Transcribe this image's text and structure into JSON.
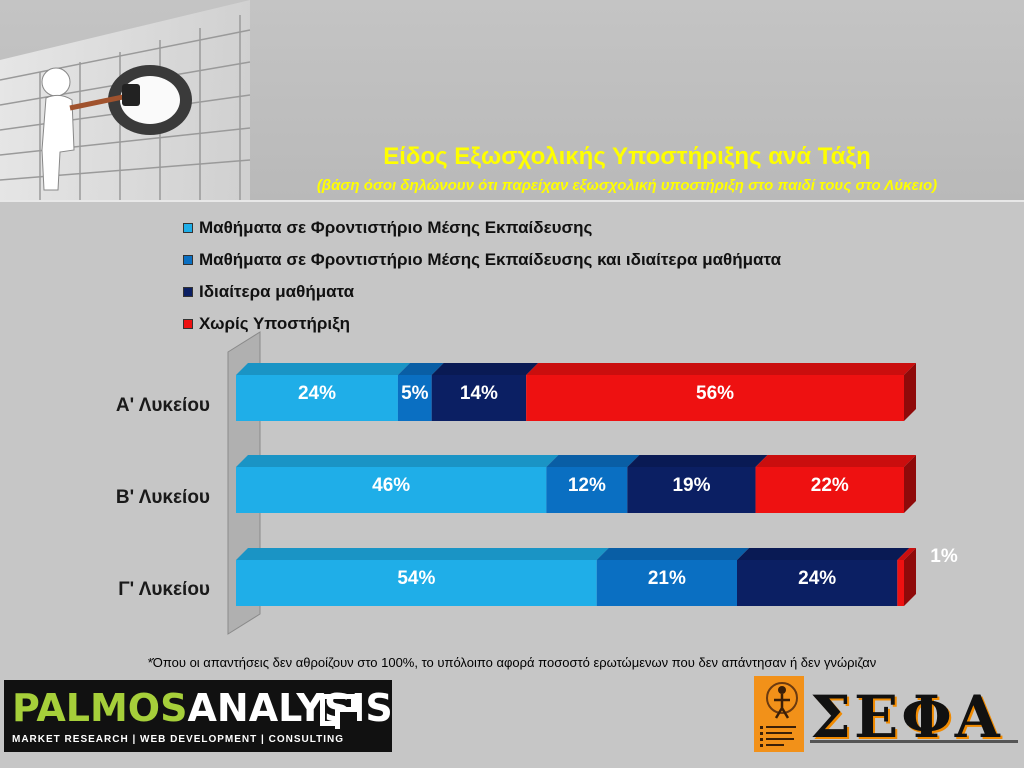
{
  "header": {
    "title": "Είδος Εξωσχολικής Υποστήριξης ανά Τάξη",
    "subtitle": "(βάση όσοι δηλώνουν ότι παρείχαν εξωσχολική υποστήριξη στο παιδί τους στο Λύκειο)"
  },
  "chart_data": {
    "type": "bar",
    "orientation": "horizontal",
    "stacked": true,
    "categories": [
      "Α' Λυκείου",
      "Β' Λυκείου",
      "Γ' Λυκείου"
    ],
    "series": [
      {
        "name": "Μαθήματα σε Φροντιστήριο Μέσης Εκπαίδευσης",
        "values": [
          24,
          46,
          54
        ],
        "color": "#1faee8"
      },
      {
        "name": "Μαθήματα σε Φροντιστήριο Μέσης Εκπαίδευσης και ιδιαίτερα μαθήματα",
        "values": [
          5,
          12,
          21
        ],
        "color": "#0a6fc2"
      },
      {
        "name": "Ιδιαίτερα μαθήματα",
        "values": [
          14,
          19,
          24
        ],
        "color": "#0b1f63"
      },
      {
        "name": "Χωρίς Υποστήριξη",
        "values": [
          56,
          22,
          1
        ],
        "color": "#ee1111"
      }
    ],
    "value_labels": [
      [
        "24%",
        "5%",
        "14%",
        "56%"
      ],
      [
        "46%",
        "12%",
        "19%",
        "22%"
      ],
      [
        "54%",
        "21%",
        "24%",
        "1%"
      ]
    ],
    "legend_position": "top",
    "grid": false
  },
  "footnote": "*Όπου οι απαντήσεις δεν αθροίζουν στο 100%, το υπόλοιπο αφορά ποσοστό ερωτώμενων που δεν απάντησαν ή δεν γνώριζαν",
  "logos": {
    "palmos_part1": "PALMOS",
    "palmos_part2": "ANALYSIS",
    "palmos_tagline": "MARKET RESEARCH | WEB DEVELOPMENT | CONSULTING",
    "sefa": "ΣΕΦΑ"
  }
}
